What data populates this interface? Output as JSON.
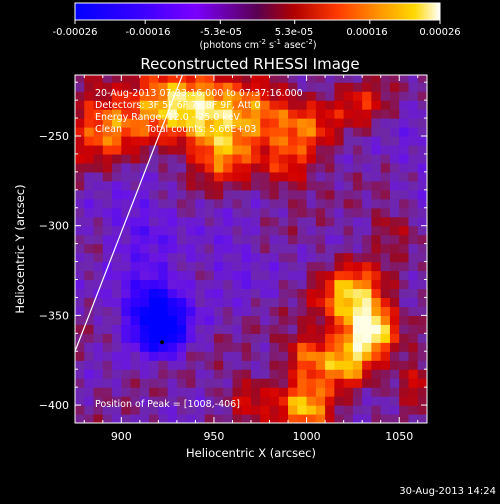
{
  "colorbar": {
    "tick_labels": [
      "-0.00026",
      "-0.00016",
      "-5.3e-05",
      "5.3e-05",
      "0.00016",
      "0.00026"
    ],
    "tick_values": [
      -0.00026,
      -0.00016,
      -5.3e-05,
      5.3e-05,
      0.00016,
      0.00026
    ],
    "range": [
      -0.00026,
      0.00026
    ],
    "unit_label": "(photons cm",
    "unit_exp1": "-2",
    "unit_mid": " s",
    "unit_exp2": "-1",
    "unit_mid2": " asec",
    "unit_exp3": "-2",
    "unit_end": ")",
    "colors": [
      "#0000ff",
      "#5a00ff",
      "#9a00ff",
      "#7a0070",
      "#b00000",
      "#ff3000",
      "#ff8c00",
      "#ffd000",
      "#ffffff"
    ]
  },
  "annotations": {
    "time_range": "20-Aug-2013 07:33:16.000 to 07:37:16.000",
    "detectors": "Detectors: 3F 5F 6F 7F 8F 9F, Att 0",
    "energy_range": "Energy Range: 12.0 - 25.0 keV",
    "clean_label": "Clean",
    "total_counts": "Total counts: 5.66E+03",
    "peak_position": "Position of Peak = [1008,-406]"
  },
  "footer": {
    "date": "30-Aug-2013 14:24"
  },
  "chart_data": {
    "type": "heatmap",
    "title": "Reconstructed RHESSI Image",
    "xlabel": "Heliocentric X (arcsec)",
    "ylabel": "Heliocentric Y (arcsec)",
    "x_ticks": [
      900,
      950,
      1000,
      1050
    ],
    "x_tick_labels": [
      "900",
      "950",
      "1000",
      "1050"
    ],
    "y_ticks": [
      -250,
      -300,
      -350,
      -400
    ],
    "y_tick_labels": [
      "-250",
      "-300",
      "-350",
      "-400"
    ],
    "xlim": [
      875,
      1065
    ],
    "ylim": [
      -410,
      -216
    ],
    "peak": {
      "x": 1008,
      "y": -406
    },
    "limb_line": {
      "x": [
        875,
        933
      ],
      "y": [
        -370,
        -216
      ]
    },
    "colorbar_range": [
      -0.00026,
      0.00026
    ],
    "intensity_sources": [
      {
        "x": 890,
        "y": -244,
        "strength": 0.75,
        "sigma": 14
      },
      {
        "x": 925,
        "y": -229,
        "strength": 0.85,
        "sigma": 16
      },
      {
        "x": 950,
        "y": -238,
        "strength": 0.7,
        "sigma": 14
      },
      {
        "x": 955,
        "y": -260,
        "strength": 0.65,
        "sigma": 12
      },
      {
        "x": 975,
        "y": -236,
        "strength": 0.65,
        "sigma": 12
      },
      {
        "x": 1000,
        "y": -245,
        "strength": 0.6,
        "sigma": 12
      },
      {
        "x": 1030,
        "y": -232,
        "strength": 0.45,
        "sigma": 10
      },
      {
        "x": 990,
        "y": -268,
        "strength": 0.5,
        "sigma": 10
      },
      {
        "x": 1025,
        "y": -340,
        "strength": 1.0,
        "sigma": 13
      },
      {
        "x": 1035,
        "y": -358,
        "strength": 1.1,
        "sigma": 9
      },
      {
        "x": 1022,
        "y": -376,
        "strength": 0.85,
        "sigma": 10
      },
      {
        "x": 1000,
        "y": -372,
        "strength": 0.7,
        "sigma": 9
      },
      {
        "x": 1000,
        "y": -402,
        "strength": 0.95,
        "sigma": 11
      },
      {
        "x": 1060,
        "y": -388,
        "strength": 0.5,
        "sigma": 9
      },
      {
        "x": 968,
        "y": -395,
        "strength": 0.45,
        "sigma": 9
      },
      {
        "x": 1045,
        "y": -300,
        "strength": 0.35,
        "sigma": 8
      },
      {
        "x": 918,
        "y": -345,
        "strength": -1.0,
        "sigma": 12
      },
      {
        "x": 922,
        "y": -360,
        "strength": -0.8,
        "sigma": 9
      },
      {
        "x": 910,
        "y": -300,
        "strength": -0.35,
        "sigma": 14
      },
      {
        "x": 960,
        "y": -318,
        "strength": -0.25,
        "sigma": 12
      },
      {
        "x": 1060,
        "y": -260,
        "strength": -0.2,
        "sigma": 12
      }
    ]
  }
}
